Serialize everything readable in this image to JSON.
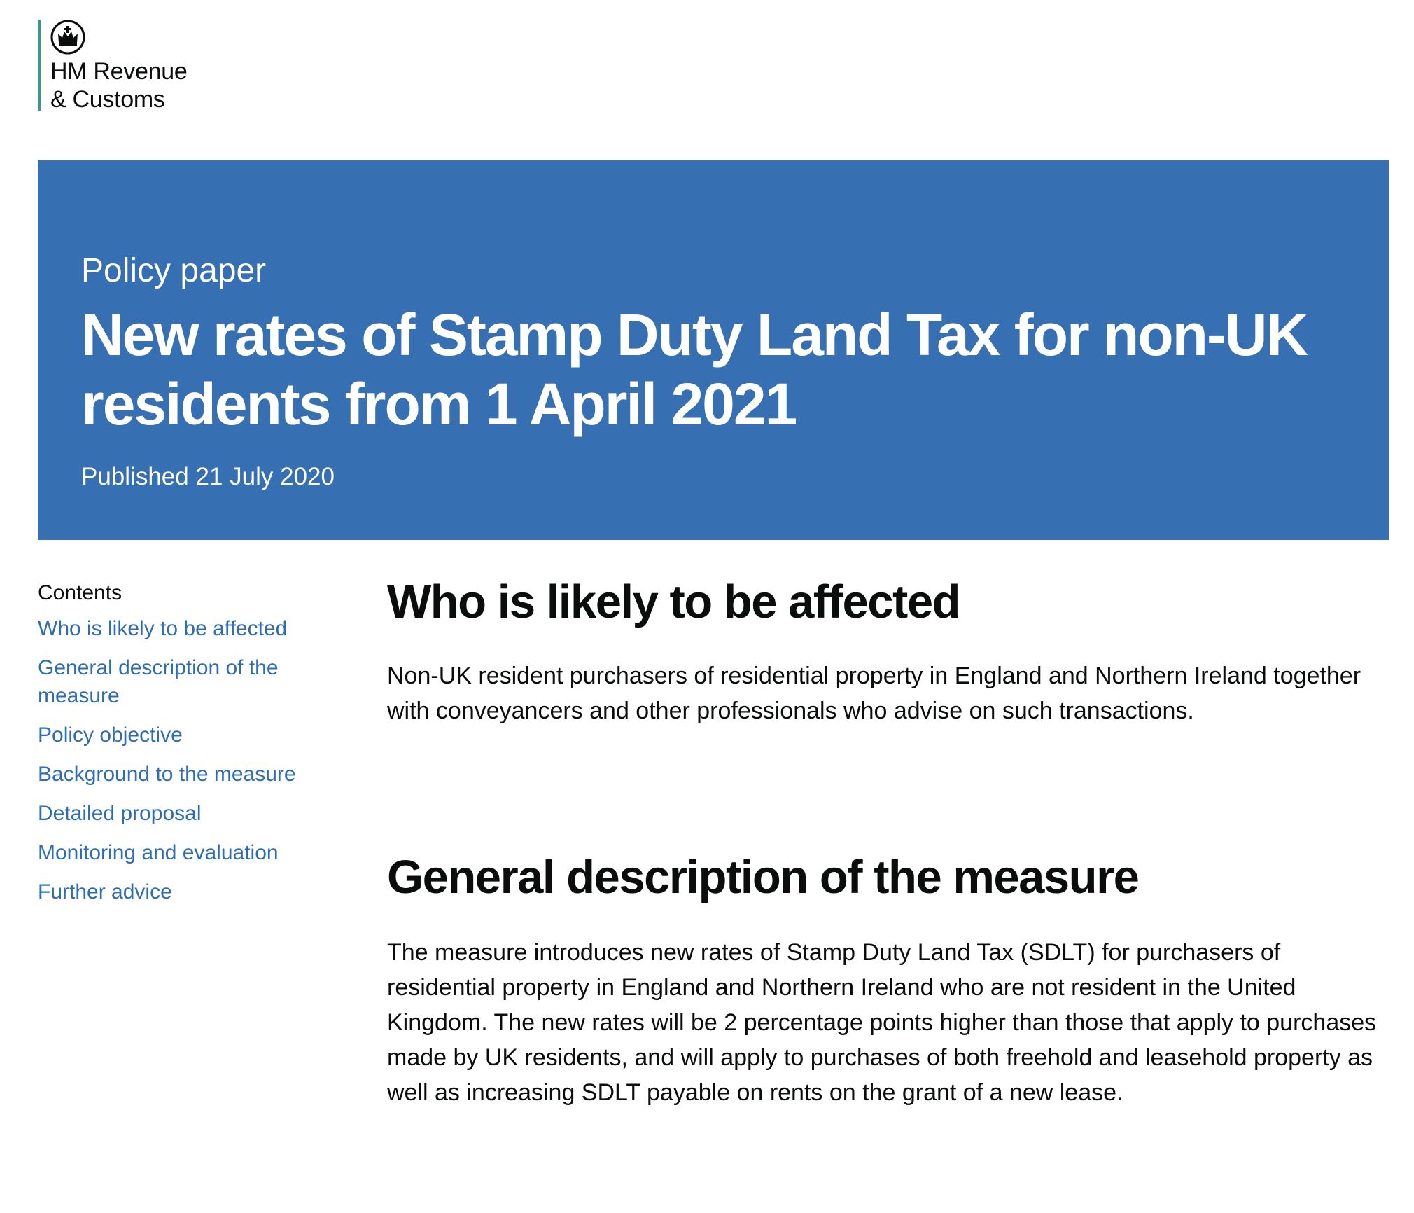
{
  "header": {
    "org_lines": [
      "HM Revenue",
      "& Customs"
    ],
    "logo_icon": "crown-icon",
    "accent": "#3d9690"
  },
  "banner": {
    "kicker": "Policy paper",
    "title": "New rates of Stamp Duty Land Tax for non-UK residents from 1 April 2021",
    "published": "Published 21 July 2020",
    "color": "#366fb2"
  },
  "contents": {
    "heading": "Contents",
    "items": [
      "Who is likely to be affected",
      "General description of the measure",
      "Policy objective",
      "Background to the measure",
      "Detailed proposal",
      "Monitoring and evaluation",
      "Further advice"
    ],
    "link_color": "#2f6db3"
  },
  "sections": [
    {
      "heading": "Who is likely to be affected",
      "body": "Non-UK resident purchasers of residential property in England and Northern Ireland together with conveyancers and other professionals who advise on such transactions."
    },
    {
      "heading": "General description of the measure",
      "body": "The measure introduces new rates of Stamp Duty Land Tax (SDLT) for purchasers of residential property in England and Northern Ireland who are not resident in the United Kingdom. The new rates will be 2 percentage points higher than those that apply to purchases made by UK residents, and will apply to purchases of both freehold and leasehold property as well as increasing SDLT payable on rents on the grant of a new lease."
    }
  ]
}
